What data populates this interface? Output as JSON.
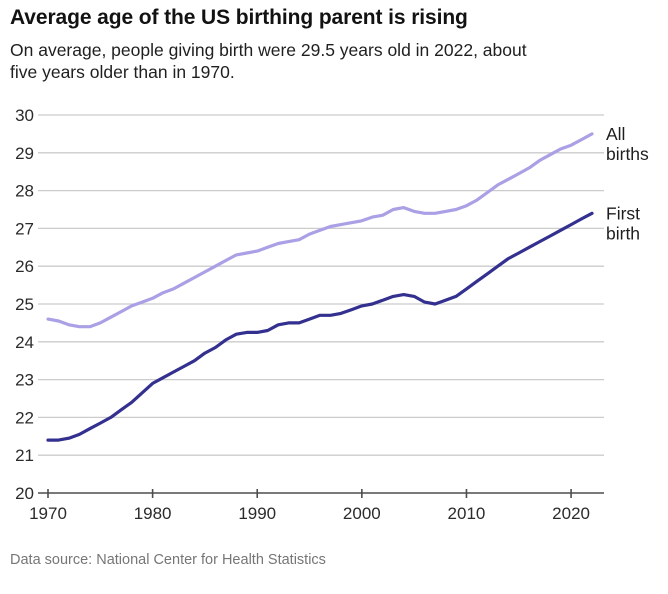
{
  "header": {
    "title": "Average age of the US birthing parent is rising",
    "subtitle_line1": "On average, people giving birth were 29.5 years old in 2022, about",
    "subtitle_line2": "five years older than in 1970."
  },
  "footer": {
    "source": "Data source: National Center for Health Statistics"
  },
  "chart_data": {
    "type": "line",
    "title": "Average age of the US birthing parent is rising",
    "xlabel": "",
    "ylabel": "",
    "xlim": [
      1970,
      2022
    ],
    "ylim": [
      20,
      30
    ],
    "x_ticks": [
      1970,
      1980,
      1990,
      2000,
      2010,
      2020
    ],
    "y_ticks": [
      20,
      21,
      22,
      23,
      24,
      25,
      26,
      27,
      28,
      29,
      30
    ],
    "grid": "horizontal",
    "grid_color": "#cccccc",
    "axis_color": "#4d4d4d",
    "legend_position": "right of line ends",
    "years": [
      1970,
      1971,
      1972,
      1973,
      1974,
      1975,
      1976,
      1977,
      1978,
      1979,
      1980,
      1981,
      1982,
      1983,
      1984,
      1985,
      1986,
      1987,
      1988,
      1989,
      1990,
      1991,
      1992,
      1993,
      1994,
      1995,
      1996,
      1997,
      1998,
      1999,
      2000,
      2001,
      2002,
      2003,
      2004,
      2005,
      2006,
      2007,
      2008,
      2009,
      2010,
      2011,
      2012,
      2013,
      2014,
      2015,
      2016,
      2017,
      2018,
      2019,
      2020,
      2021,
      2022
    ],
    "series": [
      {
        "name": "All births",
        "label_lines": [
          "All",
          "births"
        ],
        "color": "#a9a0e5",
        "values": [
          24.6,
          24.55,
          24.45,
          24.4,
          24.4,
          24.5,
          24.65,
          24.8,
          24.95,
          25.05,
          25.15,
          25.3,
          25.4,
          25.55,
          25.7,
          25.85,
          26.0,
          26.15,
          26.3,
          26.35,
          26.4,
          26.5,
          26.6,
          26.65,
          26.7,
          26.85,
          26.95,
          27.05,
          27.1,
          27.15,
          27.2,
          27.3,
          27.35,
          27.5,
          27.55,
          27.45,
          27.4,
          27.4,
          27.45,
          27.5,
          27.6,
          27.75,
          27.95,
          28.15,
          28.3,
          28.45,
          28.6,
          28.8,
          28.95,
          29.1,
          29.2,
          29.35,
          29.5
        ]
      },
      {
        "name": "First birth",
        "label_lines": [
          "First",
          "birth"
        ],
        "color": "#33308f",
        "values": [
          21.4,
          21.4,
          21.45,
          21.55,
          21.7,
          21.85,
          22.0,
          22.2,
          22.4,
          22.65,
          22.9,
          23.05,
          23.2,
          23.35,
          23.5,
          23.7,
          23.85,
          24.05,
          24.2,
          24.25,
          24.25,
          24.3,
          24.45,
          24.5,
          24.5,
          24.6,
          24.7,
          24.7,
          24.75,
          24.85,
          24.95,
          25.0,
          25.1,
          25.2,
          25.25,
          25.2,
          25.05,
          25.0,
          25.1,
          25.2,
          25.4,
          25.6,
          25.8,
          26.0,
          26.2,
          26.35,
          26.5,
          26.65,
          26.8,
          26.95,
          27.1,
          27.25,
          27.4
        ]
      }
    ]
  }
}
